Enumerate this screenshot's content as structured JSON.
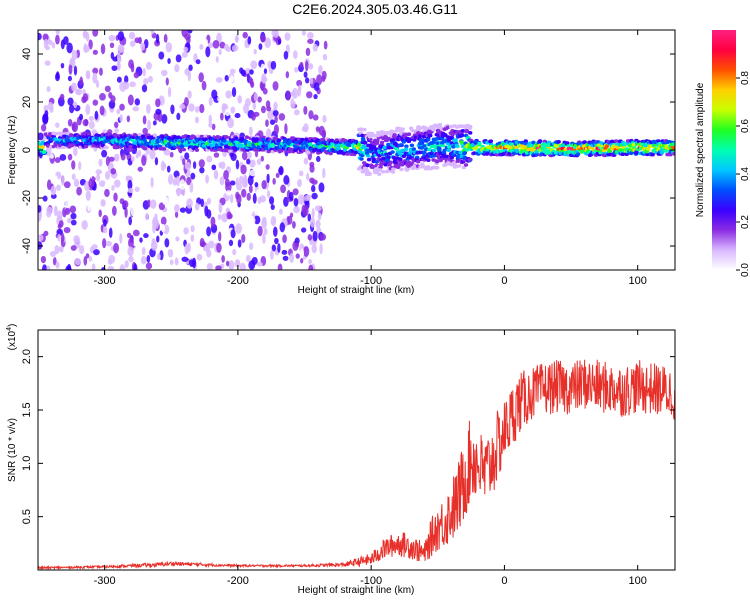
{
  "title": "C2E6.2024.305.03.46.G11",
  "chart_data": [
    {
      "type": "heatmap",
      "xlabel": "Height of straight line (km)",
      "ylabel": "Frequency (Hz)",
      "xlim": [
        -350,
        128
      ],
      "ylim": [
        -50,
        50
      ],
      "x_ticks": [
        "-300",
        "-200",
        "-100",
        "0",
        "100"
      ],
      "y_ticks": [
        "-40",
        "-20",
        "0",
        "20",
        "40"
      ],
      "colorbar": {
        "label": "Normalized spectral amplitude",
        "range": [
          0,
          1
        ],
        "ticks": [
          "0.0",
          "0.2",
          "0.4",
          "0.6",
          "0.8"
        ],
        "colors": [
          "#ffffff",
          "#d9b8ff",
          "#8a2be2",
          "#3a00ff",
          "#0050ff",
          "#00c8ff",
          "#00ffb0",
          "#20ff20",
          "#c8ff00",
          "#ffd000",
          "#ff5000",
          "#ff0040",
          "#ff2080"
        ]
      },
      "noise_region_x": [
        -350,
        -134
      ],
      "signal_band": [
        {
          "x": -345,
          "f_center": 4,
          "amplitude": 0.4
        },
        {
          "x": -300,
          "f_center": 4,
          "amplitude": 0.55
        },
        {
          "x": -250,
          "f_center": 3,
          "amplitude": 0.6
        },
        {
          "x": -200,
          "f_center": 2.5,
          "amplitude": 0.55
        },
        {
          "x": -150,
          "f_center": 2,
          "amplitude": 0.55
        },
        {
          "x": -110,
          "f_center": 1,
          "amplitude": 0.7
        },
        {
          "x": -100,
          "f_center": -2,
          "amplitude": 0.4
        },
        {
          "x": -80,
          "f_center": 0,
          "amplitude": 0.5
        },
        {
          "x": -60,
          "f_center": 1,
          "amplitude": 0.5
        },
        {
          "x": -40,
          "f_center": 2,
          "amplitude": 0.5
        },
        {
          "x": -20,
          "f_center": 1,
          "amplitude": 0.8
        },
        {
          "x": 0,
          "f_center": 1,
          "amplitude": 0.9
        },
        {
          "x": 50,
          "f_center": 0.5,
          "amplitude": 0.95
        },
        {
          "x": 100,
          "f_center": 1,
          "amplitude": 0.9
        },
        {
          "x": 128,
          "f_center": 1,
          "amplitude": 0.85
        }
      ]
    },
    {
      "type": "line",
      "xlabel": "Height of straight line (km)",
      "ylabel": "SNR (10 * v/v)",
      "y_multiplier": "(x10",
      "y_multiplier_exp": "4",
      "xlim": [
        -350,
        128
      ],
      "ylim": [
        0,
        2.25
      ],
      "x_ticks": [
        "-300",
        "-200",
        "-100",
        "0",
        "100"
      ],
      "y_ticks": [
        "0.5",
        "1.0",
        "1.5",
        "2.0"
      ],
      "series": [
        {
          "color": "#e8302a",
          "x": [
            -350,
            -300,
            -260,
            -250,
            -200,
            -150,
            -120,
            -100,
            -90,
            -80,
            -70,
            -60,
            -55,
            -50,
            -45,
            -40,
            -35,
            -30,
            -25,
            -20,
            -15,
            -10,
            -5,
            0,
            10,
            20,
            30,
            40,
            50,
            60,
            70,
            80,
            90,
            100,
            110,
            120,
            128
          ],
          "y": [
            0.02,
            0.03,
            0.05,
            0.06,
            0.04,
            0.04,
            0.05,
            0.1,
            0.2,
            0.25,
            0.22,
            0.15,
            0.3,
            0.4,
            0.45,
            0.55,
            0.65,
            0.85,
            1.05,
            1.0,
            0.9,
            1.0,
            1.15,
            1.3,
            1.55,
            1.65,
            1.7,
            1.72,
            1.7,
            1.75,
            1.72,
            1.7,
            1.68,
            1.72,
            1.7,
            1.68,
            1.65
          ],
          "noise_amplitude": [
            0.01,
            0.01,
            0.02,
            0.02,
            0.01,
            0.01,
            0.02,
            0.06,
            0.1,
            0.12,
            0.12,
            0.1,
            0.18,
            0.22,
            0.25,
            0.3,
            0.35,
            0.4,
            0.4,
            0.35,
            0.35,
            0.35,
            0.35,
            0.3,
            0.3,
            0.25,
            0.25,
            0.25,
            0.25,
            0.25,
            0.25,
            0.25,
            0.25,
            0.25,
            0.25,
            0.25,
            0.25
          ]
        }
      ]
    }
  ]
}
